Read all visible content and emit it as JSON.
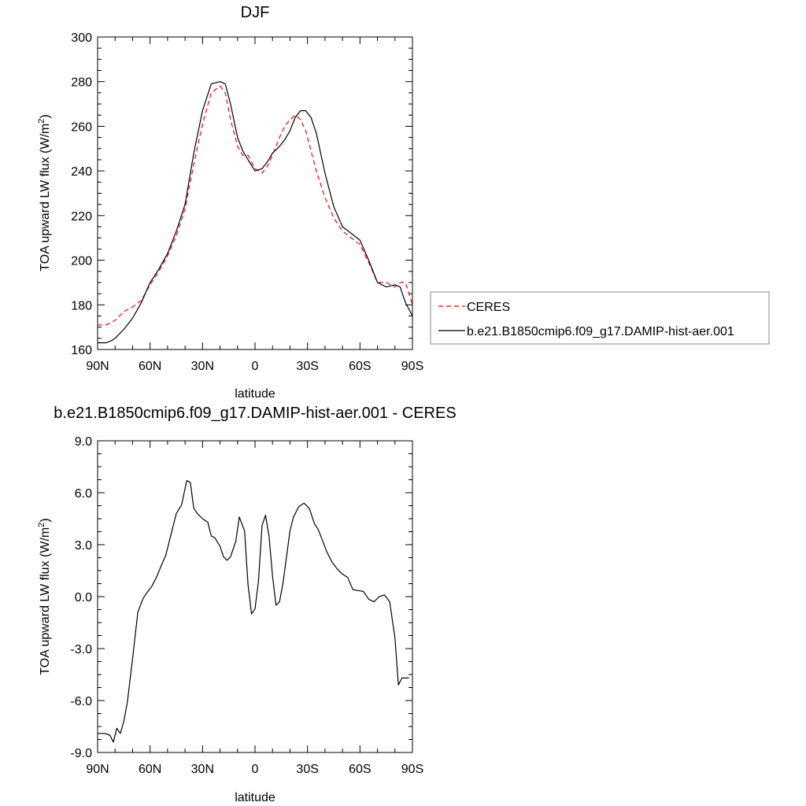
{
  "chart_data": [
    {
      "type": "line",
      "title": "DJF",
      "xlabel": "latitude",
      "ylabel": "TOA upward LW flux (W/m",
      "ylabel_sup": "2",
      "ylabel_close": ")",
      "xlim": [
        90,
        -90
      ],
      "ylim": [
        160,
        300
      ],
      "xticks": [
        90,
        60,
        30,
        0,
        -30,
        -60,
        -90
      ],
      "xtick_labels": [
        "90N",
        "60N",
        "30N",
        "0",
        "30S",
        "60S",
        "90S"
      ],
      "yticks": [
        160,
        180,
        200,
        220,
        240,
        260,
        280,
        300
      ],
      "ytick_labels": [
        "160",
        "180",
        "200",
        "220",
        "240",
        "260",
        "280",
        "300"
      ],
      "legend_position": "right",
      "series": [
        {
          "name": "CERES",
          "color": "#ff0000",
          "dash": true,
          "x": [
            90,
            85,
            80,
            75,
            70,
            65,
            60,
            55,
            50,
            45,
            40,
            35,
            30,
            25,
            20,
            17,
            14,
            10,
            7,
            4,
            0,
            -4,
            -7,
            -10,
            -14,
            -17,
            -20,
            -23,
            -26,
            -29,
            -32,
            -35,
            -40,
            -45,
            -50,
            -55,
            -60,
            -65,
            -70,
            -75,
            -80,
            -83,
            -86,
            -88,
            -90
          ],
          "y": [
            171,
            171,
            173,
            177,
            179,
            182,
            189,
            195,
            202,
            211,
            223,
            243,
            261,
            275,
            278,
            275,
            263,
            251,
            247,
            247,
            241,
            239,
            242,
            247,
            255,
            260,
            263,
            265,
            263,
            258,
            249,
            240,
            228,
            219,
            213,
            210,
            207,
            199,
            190,
            190,
            188,
            190,
            190,
            185,
            180
          ]
        },
        {
          "name": "b.e21.B1850cmip6.f09_g17.DAMIP-hist-aer.001",
          "color": "#000000",
          "dash": false,
          "x": [
            90,
            85,
            82,
            80,
            75,
            70,
            65,
            60,
            55,
            50,
            45,
            40,
            35,
            30,
            25,
            20,
            17,
            14,
            10,
            7,
            4,
            0,
            -4,
            -7,
            -10,
            -14,
            -17,
            -20,
            -23,
            -26,
            -29,
            -32,
            -35,
            -40,
            -45,
            -50,
            -55,
            -60,
            -65,
            -70,
            -75,
            -80,
            -83,
            -86,
            -88,
            -90
          ],
          "y": [
            163,
            163,
            164,
            165,
            169,
            174,
            181,
            190,
            196,
            203,
            213,
            225,
            248,
            267,
            279,
            280,
            279,
            270,
            255,
            249,
            245,
            240,
            241,
            244,
            248,
            251,
            254,
            258,
            264,
            267,
            267,
            264,
            257,
            239,
            224,
            215,
            212,
            209,
            200,
            190,
            188,
            189,
            188,
            181,
            178,
            175
          ]
        }
      ]
    },
    {
      "type": "line",
      "title": "b.e21.B1850cmip6.f09_g17.DAMIP-hist-aer.001 - CERES",
      "xlabel": "latitude",
      "ylabel": "TOA upward LW flux (W/m",
      "ylabel_sup": "2",
      "ylabel_close": ")",
      "xlim": [
        90,
        -90
      ],
      "ylim": [
        -9,
        9
      ],
      "xticks": [
        90,
        60,
        30,
        0,
        -30,
        -60,
        -90
      ],
      "xtick_labels": [
        "90N",
        "60N",
        "30N",
        "0",
        "30S",
        "60S",
        "90S"
      ],
      "yticks": [
        -9,
        -6,
        -3,
        0,
        3,
        6,
        9
      ],
      "ytick_labels": [
        "-9.0",
        "-6.0",
        "-3.0",
        "0.0",
        "3.0",
        "6.0",
        "9.0"
      ],
      "series": [
        {
          "name": "",
          "color": "#000000",
          "dash": false,
          "x": [
            90,
            86,
            83,
            81,
            79,
            77,
            75,
            73,
            70,
            67,
            64,
            62,
            59,
            56,
            54,
            51,
            48,
            45,
            42,
            39,
            37,
            35,
            33,
            30,
            27,
            25,
            23,
            20,
            18,
            16,
            14,
            11,
            9,
            6,
            4,
            2,
            0,
            -2,
            -4,
            -6,
            -8,
            -10,
            -12,
            -14,
            -16,
            -18,
            -20,
            -22,
            -25,
            -28,
            -31,
            -34,
            -36,
            -38,
            -41,
            -44,
            -47,
            -50,
            -53,
            -56,
            -59,
            -62,
            -65,
            -68,
            -71,
            -74,
            -77,
            -80,
            -82,
            -84,
            -86,
            -88
          ],
          "y": [
            -7.9,
            -7.9,
            -8.0,
            -8.4,
            -7.6,
            -7.9,
            -7.2,
            -6.1,
            -3.6,
            -0.9,
            -0.1,
            0.2,
            0.6,
            1.2,
            1.7,
            2.4,
            3.6,
            4.8,
            5.3,
            6.7,
            6.6,
            5.1,
            4.8,
            4.5,
            4.3,
            3.5,
            3.4,
            2.9,
            2.3,
            2.1,
            2.3,
            3.2,
            4.6,
            3.8,
            0.7,
            -1.0,
            -0.7,
            0.9,
            4.1,
            4.7,
            3.5,
            1.2,
            -0.5,
            -0.3,
            0.8,
            2.3,
            3.8,
            4.6,
            5.2,
            5.4,
            5.1,
            4.2,
            3.9,
            3.4,
            2.6,
            2.0,
            1.6,
            1.3,
            1.1,
            0.4,
            0.35,
            0.3,
            -0.15,
            -0.3,
            0.0,
            0.1,
            -0.3,
            -2.4,
            -5.1,
            -4.7,
            -4.7,
            -4.7
          ]
        }
      ]
    }
  ]
}
